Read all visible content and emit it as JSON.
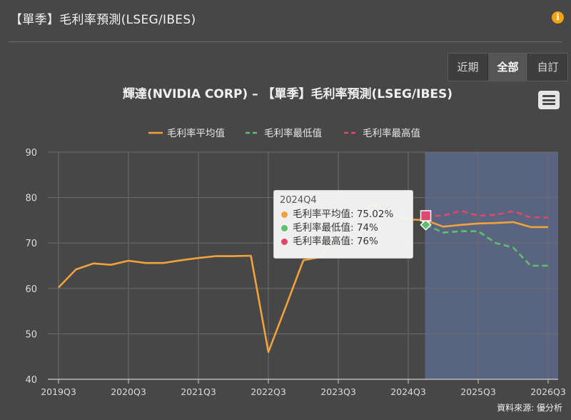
{
  "panel": {
    "title": "【單季】毛利率預測(LSEG/IBES)",
    "info_icon": "info-icon",
    "source": "資料來源: 優分析"
  },
  "range_buttons": [
    {
      "label": "近期",
      "active": false
    },
    {
      "label": "全部",
      "active": true
    },
    {
      "label": "自訂",
      "active": false
    }
  ],
  "menu_icon": "hamburger-menu-icon",
  "tooltip": {
    "period": "2024Q4",
    "rows": [
      {
        "label": "毛利率平均值: 75.02%",
        "color": "#f2a23a"
      },
      {
        "label": "毛利率最低值: 74%",
        "color": "#5fbf6a"
      },
      {
        "label": "毛利率最高值: 76%",
        "color": "#e0466f"
      }
    ]
  },
  "chart_data": {
    "type": "line",
    "title": "輝達(NVIDIA CORP) – 【單季】毛利率預測(LSEG/IBES)",
    "ylim": [
      40,
      90
    ],
    "y_ticks": [
      40,
      50,
      60,
      70,
      80,
      90
    ],
    "x_range": [
      "2019Q3",
      "2026Q3"
    ],
    "x_ticks": [
      "2019Q3",
      "2020Q3",
      "2021Q3",
      "2022Q3",
      "2023Q3",
      "2024Q3",
      "2025Q3",
      "2026Q3"
    ],
    "forecast_band": {
      "from": "2024Q4",
      "to": "2026Q3",
      "color": "#5b6784"
    },
    "grid": true,
    "legend_position": "top-center",
    "series": [
      {
        "name": "毛利率平均值",
        "color": "#f2a23a",
        "dash": "solid",
        "points": [
          [
            "2019Q3",
            60.2
          ],
          [
            "2019Q4",
            64.2
          ],
          [
            "2020Q1",
            65.5
          ],
          [
            "2020Q2",
            65.2
          ],
          [
            "2020Q3",
            66.1
          ],
          [
            "2020Q4",
            65.6
          ],
          [
            "2021Q1",
            65.6
          ],
          [
            "2021Q2",
            66.2
          ],
          [
            "2021Q3",
            66.7
          ],
          [
            "2021Q4",
            67.1
          ],
          [
            "2022Q1",
            67.1
          ],
          [
            "2022Q2",
            67.2
          ],
          [
            "2022Q3",
            46.0
          ],
          [
            "2022Q4",
            56.0
          ],
          [
            "2023Q1",
            66.2
          ],
          [
            "2023Q2",
            66.9
          ],
          [
            "2023Q3",
            72.5
          ],
          [
            "2023Q4",
            75.5
          ],
          [
            "2024Q1",
            78.8
          ],
          [
            "2024Q2",
            76.4
          ],
          [
            "2024Q3",
            75.2
          ],
          [
            "2024Q4",
            75.02
          ],
          [
            "2025Q1",
            73.6
          ],
          [
            "2025Q2",
            74.0
          ],
          [
            "2025Q3",
            74.3
          ],
          [
            "2025Q4",
            74.4
          ],
          [
            "2026Q1",
            74.6
          ],
          [
            "2026Q2",
            73.5
          ],
          [
            "2026Q3",
            73.5
          ]
        ]
      },
      {
        "name": "毛利率最低值",
        "color": "#5fbf6a",
        "dash": "dashed",
        "points": [
          [
            "2024Q4",
            74
          ],
          [
            "2025Q1",
            72.3
          ],
          [
            "2025Q2",
            72.6
          ],
          [
            "2025Q3",
            72.6
          ],
          [
            "2025Q4",
            70.0
          ],
          [
            "2026Q1",
            69.0
          ],
          [
            "2026Q2",
            65.0
          ],
          [
            "2026Q3",
            65.0
          ]
        ]
      },
      {
        "name": "毛利率最高值",
        "color": "#e0466f",
        "dash": "dashed",
        "points": [
          [
            "2024Q4",
            76
          ],
          [
            "2025Q1",
            76.0
          ],
          [
            "2025Q2",
            77.1
          ],
          [
            "2025Q3",
            76.0
          ],
          [
            "2025Q4",
            76.2
          ],
          [
            "2026Q1",
            77.0
          ],
          [
            "2026Q2",
            75.6
          ],
          [
            "2026Q3",
            75.6
          ]
        ]
      }
    ]
  }
}
